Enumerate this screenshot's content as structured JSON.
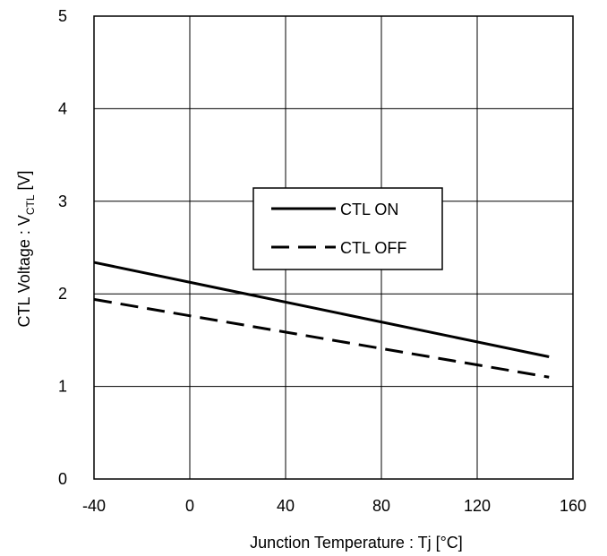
{
  "chart_data": {
    "type": "line",
    "xlabel": "Junction Temperature : Tj [°C]",
    "ylabel_main": "CTL Voltage : V",
    "ylabel_sub": "CTL",
    "ylabel_suffix": " [V]",
    "xlim": [
      -40,
      160
    ],
    "ylim": [
      0,
      5
    ],
    "x_ticks": [
      "-40",
      "0",
      "40",
      "80",
      "120",
      "160"
    ],
    "y_ticks": [
      "0",
      "1",
      "2",
      "3",
      "4",
      "5"
    ],
    "grid": true,
    "legend_position": "center",
    "series": [
      {
        "name": "CTL ON",
        "style": "solid",
        "color": "#000000",
        "x": [
          -40,
          150
        ],
        "y": [
          2.34,
          1.32
        ]
      },
      {
        "name": "CTL OFF",
        "style": "dashed",
        "color": "#000000",
        "x": [
          -40,
          150
        ],
        "y": [
          1.94,
          1.1
        ]
      }
    ]
  }
}
